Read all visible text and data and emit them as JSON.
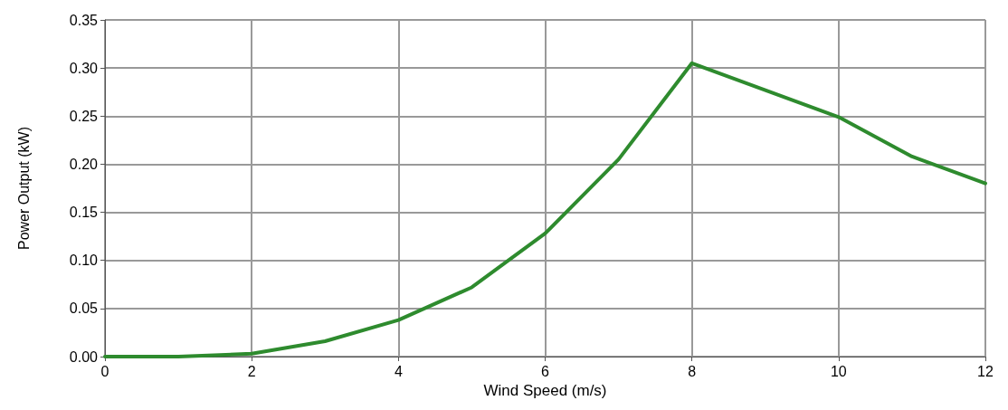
{
  "chart_data": {
    "type": "line",
    "xlabel": "Wind Speed (m/s)",
    "ylabel": "Power Output (kW)",
    "x": [
      0,
      1,
      2,
      3,
      4,
      5,
      6,
      7,
      8,
      9,
      10,
      11,
      12
    ],
    "series": [
      {
        "color": "#2e8b2e",
        "values": [
          0,
          0,
          0.003,
          0.016,
          0.038,
          0.072,
          0.128,
          0.205,
          0.305,
          0.277,
          0.249,
          0.208,
          0.18
        ]
      }
    ],
    "xlim": [
      0,
      12
    ],
    "xticks": [
      0,
      2,
      4,
      6,
      8,
      10,
      12
    ],
    "ylim": [
      0,
      0.35
    ],
    "yticks": [
      {
        "value": 0,
        "label": "0.00"
      },
      0.05,
      {
        "value": 0.1,
        "label": "0.10"
      },
      0.15,
      {
        "value": 0.2,
        "label": "0.20"
      },
      0.25,
      {
        "value": 0.3,
        "label": "0.30"
      },
      0.35
    ],
    "grid": true,
    "marker": "none",
    "line_style": "solid"
  }
}
